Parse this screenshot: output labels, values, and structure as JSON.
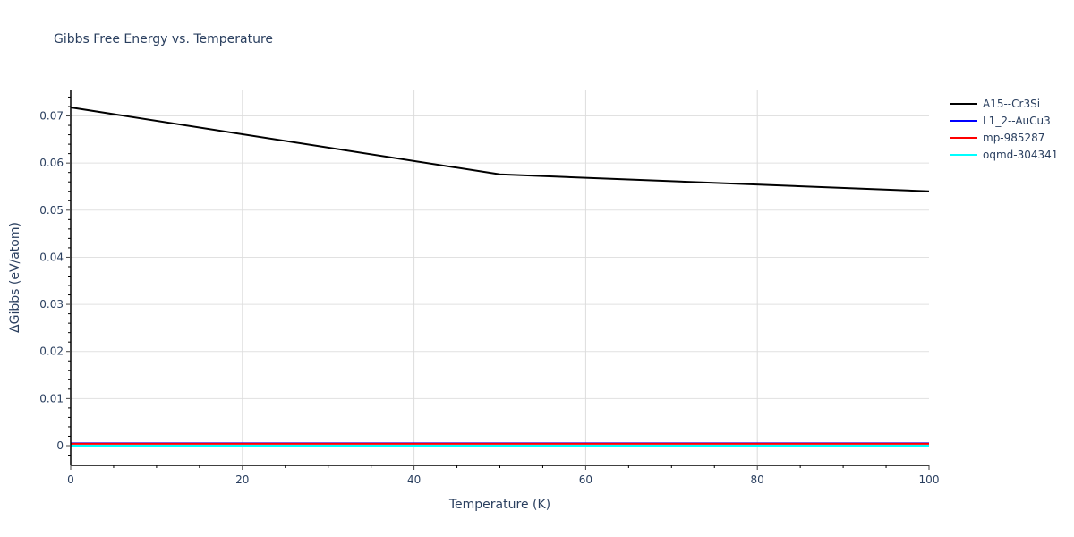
{
  "chart_data": {
    "type": "line",
    "title": "Gibbs Free Energy vs. Temperature",
    "xlabel": "Temperature (K)",
    "ylabel": "ΔGibbs (eV/atom)",
    "xlim": [
      0,
      100
    ],
    "ylim": [
      -0.004,
      0.0755
    ],
    "grid": true,
    "legend_position": "right-top",
    "x_ticks": [
      0,
      20,
      40,
      60,
      80,
      100
    ],
    "y_ticks": [
      0,
      0.01,
      0.02,
      0.03,
      0.04,
      0.05,
      0.06,
      0.07
    ],
    "x_tick_labels": [
      "0",
      "20",
      "40",
      "60",
      "80",
      "100"
    ],
    "y_tick_labels": [
      "0",
      "0.01",
      "0.02",
      "0.03",
      "0.04",
      "0.05",
      "0.06",
      "0.07"
    ],
    "series": [
      {
        "name": "A15--Cr3Si",
        "color": "#000000",
        "x": [
          0,
          50,
          100
        ],
        "values": [
          0.0718,
          0.0576,
          0.054
        ]
      },
      {
        "name": "L1_2--AuCu3",
        "color": "#0000ff",
        "x": [
          0,
          50,
          100
        ],
        "values": [
          0.0005,
          0.0005,
          0.0005
        ]
      },
      {
        "name": "mp-985287",
        "color": "#ff0000",
        "x": [
          0,
          50,
          100
        ],
        "values": [
          0.0004,
          0.0004,
          0.0004
        ]
      },
      {
        "name": "oqmd-304341",
        "color": "#00ffff",
        "x": [
          0,
          50,
          100
        ],
        "values": [
          0.0,
          0.0,
          0.0
        ]
      }
    ]
  }
}
